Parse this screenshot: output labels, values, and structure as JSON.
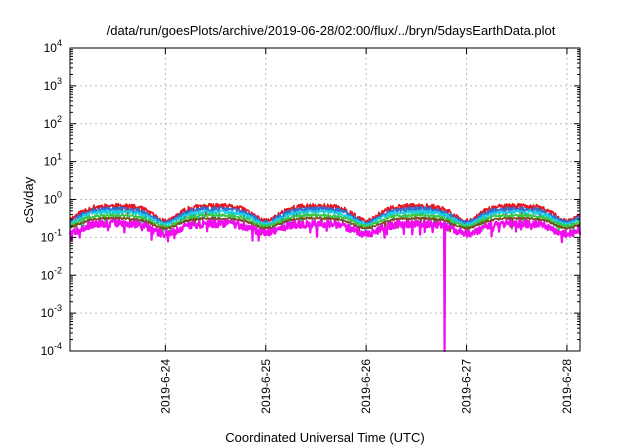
{
  "chart_data": {
    "type": "line",
    "title": "/data/run/goesPlots/archive/2019-06-28/02:00/flux/../bryn/5daysEarthData.plot",
    "xlabel": "Coordinated Universal Time (UTC)",
    "ylabel": "cSv/day",
    "yscale": "log",
    "ylim": [
      0.0001,
      10000
    ],
    "xlim_days": [
      -0.95,
      4.13
    ],
    "y_ticks": [
      {
        "base": "10",
        "exp": "-4",
        "value": 0.0001
      },
      {
        "base": "10",
        "exp": "-3",
        "value": 0.001
      },
      {
        "base": "10",
        "exp": "-2",
        "value": 0.01
      },
      {
        "base": "10",
        "exp": "-1",
        "value": 0.1
      },
      {
        "base": "10",
        "exp": "0",
        "value": 1
      },
      {
        "base": "10",
        "exp": "1",
        "value": 10
      },
      {
        "base": "10",
        "exp": "2",
        "value": 100
      },
      {
        "base": "10",
        "exp": "3",
        "value": 1000
      },
      {
        "base": "10",
        "exp": "4",
        "value": 10000
      }
    ],
    "x_ticks": [
      {
        "label": "2019-6-24",
        "day": 0
      },
      {
        "label": "2019-6-25",
        "day": 1
      },
      {
        "label": "2019-6-26",
        "day": 2
      },
      {
        "label": "2019-6-27",
        "day": 3
      },
      {
        "label": "2019-6-28",
        "day": 4
      }
    ],
    "grid": true,
    "series": [
      {
        "color": "#e8141e",
        "base": 0.62,
        "amp": 0.3,
        "noise": 0.16,
        "seed": 11
      },
      {
        "color": "#2f6fd6",
        "base": 0.52,
        "amp": 0.28,
        "noise": 0.14,
        "seed": 23
      },
      {
        "color": "#1ad0e0",
        "base": 0.44,
        "amp": 0.26,
        "noise": 0.1,
        "seed": 37
      },
      {
        "color": "#39c844",
        "base": 0.36,
        "amp": 0.24,
        "noise": 0.08,
        "seed": 41
      },
      {
        "color": "#7a4b1c",
        "base": 0.3,
        "amp": 0.22,
        "noise": 0.06,
        "seed": 53
      },
      {
        "color": "#f20cf0",
        "base": 0.22,
        "amp": 0.22,
        "noise": 0.22,
        "seed": 67,
        "dips": [
          {
            "day": 2.78,
            "value": 0.0001
          }
        ]
      }
    ]
  }
}
